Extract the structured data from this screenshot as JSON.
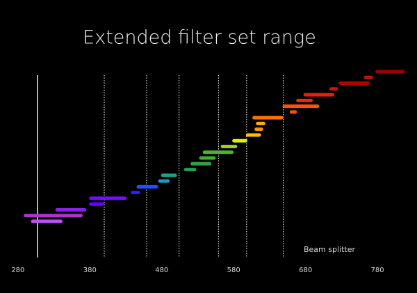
{
  "chart_data": {
    "type": "range",
    "title": "Extended filter set range",
    "annotation": "Beam splitter",
    "xlim": [
      255,
      835
    ],
    "xticks": [
      280,
      380,
      480,
      580,
      680,
      780
    ],
    "reference_line": 307,
    "splitter_lines": [
      400,
      459,
      504,
      559,
      598,
      649
    ],
    "bars": [
      {
        "start": 298,
        "end": 342,
        "color": "#c050f0"
      },
      {
        "start": 288,
        "end": 370,
        "color": "#b030d0"
      },
      {
        "start": 332,
        "end": 375,
        "color": "#8a20e8"
      },
      {
        "start": 379,
        "end": 400,
        "color": "#6a00ff"
      },
      {
        "start": 379,
        "end": 431,
        "color": "#7010ff"
      },
      {
        "start": 437,
        "end": 450,
        "color": "#2a20ff"
      },
      {
        "start": 445,
        "end": 475,
        "color": "#2050ff"
      },
      {
        "start": 475,
        "end": 491,
        "color": "#2098c8"
      },
      {
        "start": 479,
        "end": 501,
        "color": "#20a080"
      },
      {
        "start": 511,
        "end": 528,
        "color": "#20a050"
      },
      {
        "start": 520,
        "end": 549,
        "color": "#30a040"
      },
      {
        "start": 532,
        "end": 555,
        "color": "#40b030"
      },
      {
        "start": 537,
        "end": 580,
        "color": "#50b030"
      },
      {
        "start": 562,
        "end": 585,
        "color": "#a0d010"
      },
      {
        "start": 578,
        "end": 599,
        "color": "#e0f000"
      },
      {
        "start": 597,
        "end": 618,
        "color": "#ffc000"
      },
      {
        "start": 609,
        "end": 621,
        "color": "#ff9000"
      },
      {
        "start": 611,
        "end": 624,
        "color": "#ffb000"
      },
      {
        "start": 606,
        "end": 649,
        "color": "#ff7000"
      },
      {
        "start": 658,
        "end": 668,
        "color": "#ff5000"
      },
      {
        "start": 648,
        "end": 699,
        "color": "#ff5010"
      },
      {
        "start": 667,
        "end": 690,
        "color": "#e03010"
      },
      {
        "start": 677,
        "end": 720,
        "color": "#e02010"
      },
      {
        "start": 713,
        "end": 725,
        "color": "#d01010"
      },
      {
        "start": 726,
        "end": 769,
        "color": "#b00000"
      },
      {
        "start": 761,
        "end": 774,
        "color": "#c01010"
      },
      {
        "start": 777,
        "end": 818,
        "color": "#a00000"
      }
    ]
  }
}
